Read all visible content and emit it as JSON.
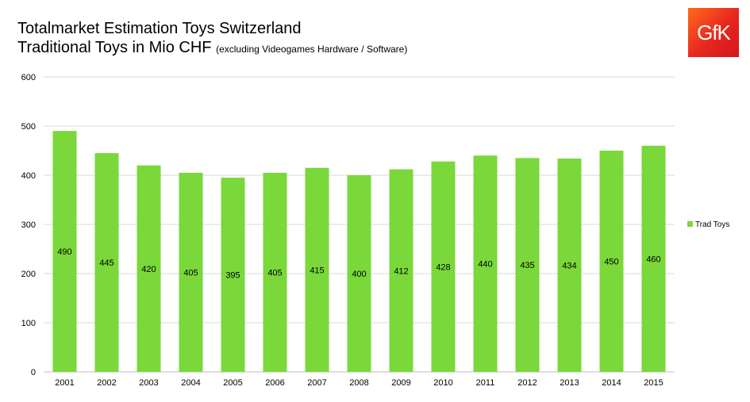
{
  "title": "Totalmarket Estimation Toys Switzerland",
  "subtitle": "Traditional Toys in Mio CHF",
  "subtitle_note": "(excluding Videogames Hardware / Software)",
  "logo_text": "GfK",
  "colors": {
    "bar": "#7ad83a",
    "grid": "#d9d9d9",
    "axis": "#bfbfbf",
    "logo": "#e8261f"
  },
  "chart_data": {
    "type": "bar",
    "categories": [
      "2001",
      "2002",
      "2003",
      "2004",
      "2005",
      "2006",
      "2007",
      "2008",
      "2009",
      "2010",
      "2011",
      "2012",
      "2013",
      "2014",
      "2015"
    ],
    "series": [
      {
        "name": "Trad Toys",
        "values": [
          490,
          445,
          420,
          405,
          395,
          405,
          415,
          400,
          412,
          428,
          440,
          435,
          434,
          450,
          460
        ]
      }
    ],
    "ylim": [
      0,
      600
    ],
    "yticks": [
      0,
      100,
      200,
      300,
      400,
      500,
      600
    ],
    "grid": true,
    "legend_position": "right",
    "data_labels": "inside-center"
  }
}
